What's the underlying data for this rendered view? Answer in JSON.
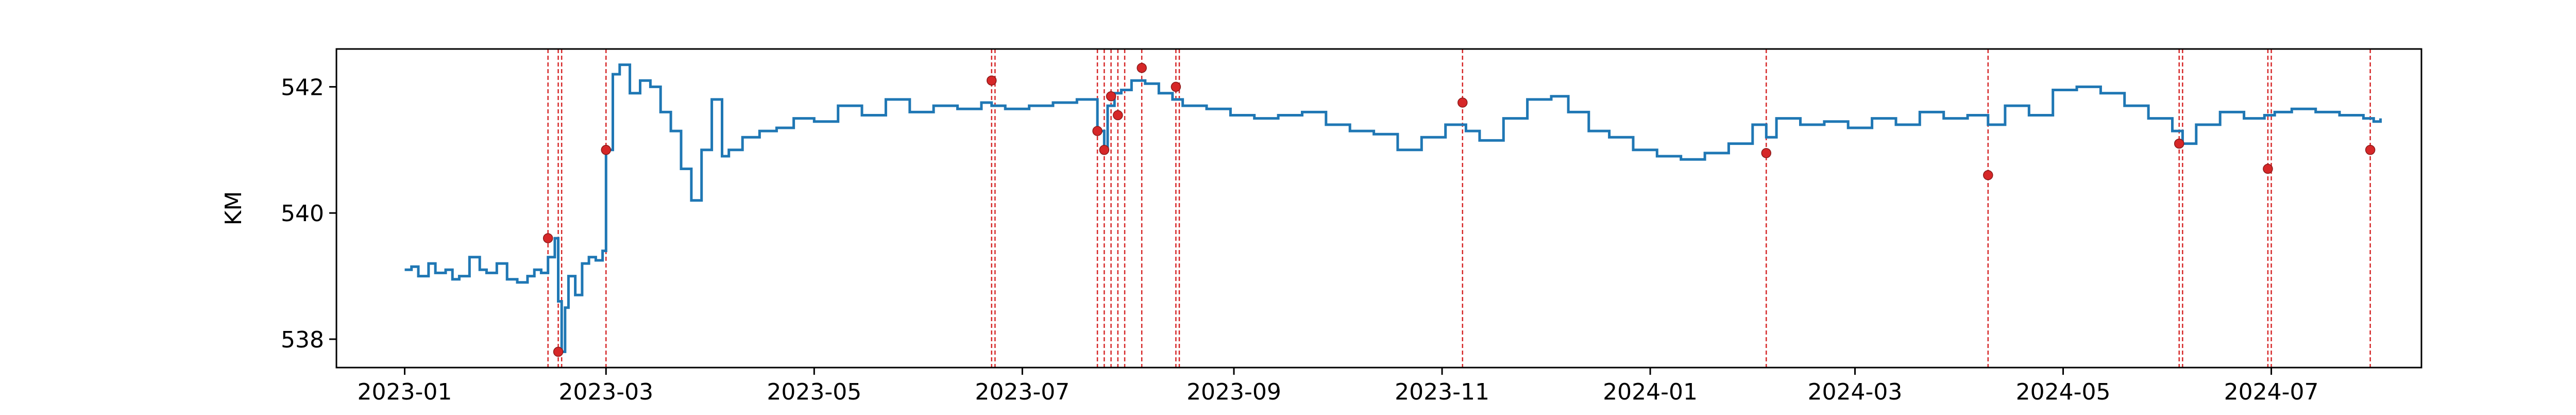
{
  "chart_data": {
    "type": "line",
    "title": "",
    "xlabel": "",
    "ylabel": "KM",
    "xlim": [
      "2022-12-12",
      "2024-08-14"
    ],
    "ylim": [
      537.55,
      542.6
    ],
    "x_ticks": [
      "2023-01",
      "2023-03",
      "2023-05",
      "2023-07",
      "2023-09",
      "2023-11",
      "2024-01",
      "2024-03",
      "2024-05",
      "2024-07"
    ],
    "y_ticks": [
      538,
      540,
      542
    ],
    "grid": false,
    "legend": "none",
    "colors": {
      "line": "#1f77b4",
      "marker": "#d62728",
      "vline": "#d62728",
      "axes": "#000000"
    },
    "series": [
      {
        "values_x": [
          "2023-01-01",
          "2023-01-03",
          "2023-01-05",
          "2023-01-08",
          "2023-01-10",
          "2023-01-13",
          "2023-01-15",
          "2023-01-17",
          "2023-01-20",
          "2023-01-23",
          "2023-01-25",
          "2023-01-28",
          "2023-01-31",
          "2023-02-03",
          "2023-02-06",
          "2023-02-08",
          "2023-02-10",
          "2023-02-12",
          "2023-02-14",
          "2023-02-15",
          "2023-02-16",
          "2023-02-17",
          "2023-02-18",
          "2023-02-20",
          "2023-02-22",
          "2023-02-24",
          "2023-02-26",
          "2023-02-28",
          "2023-03-01",
          "2023-03-03",
          "2023-03-05",
          "2023-03-08",
          "2023-03-11",
          "2023-03-14",
          "2023-03-17",
          "2023-03-20",
          "2023-03-23",
          "2023-03-26",
          "2023-03-29",
          "2023-04-01",
          "2023-04-04",
          "2023-04-06",
          "2023-04-10",
          "2023-04-15",
          "2023-04-20",
          "2023-04-25",
          "2023-05-01",
          "2023-05-08",
          "2023-05-15",
          "2023-05-22",
          "2023-05-29",
          "2023-06-05",
          "2023-06-12",
          "2023-06-19",
          "2023-06-22",
          "2023-06-26",
          "2023-07-03",
          "2023-07-10",
          "2023-07-17",
          "2023-07-23",
          "2023-07-25",
          "2023-07-26",
          "2023-07-28",
          "2023-07-30",
          "2023-08-02",
          "2023-08-06",
          "2023-08-10",
          "2023-08-14",
          "2023-08-17",
          "2023-08-24",
          "2023-08-31",
          "2023-09-07",
          "2023-09-14",
          "2023-09-21",
          "2023-09-28",
          "2023-10-05",
          "2023-10-12",
          "2023-10-19",
          "2023-10-26",
          "2023-11-02",
          "2023-11-08",
          "2023-11-12",
          "2023-11-19",
          "2023-11-26",
          "2023-12-03",
          "2023-12-08",
          "2023-12-14",
          "2023-12-20",
          "2023-12-27",
          "2024-01-03",
          "2024-01-10",
          "2024-01-17",
          "2024-01-24",
          "2024-01-31",
          "2024-02-04",
          "2024-02-07",
          "2024-02-14",
          "2024-02-21",
          "2024-02-28",
          "2024-03-06",
          "2024-03-13",
          "2024-03-20",
          "2024-03-27",
          "2024-04-03",
          "2024-04-09",
          "2024-04-14",
          "2024-04-21",
          "2024-04-28",
          "2024-05-05",
          "2024-05-12",
          "2024-05-19",
          "2024-05-26",
          "2024-06-02",
          "2024-06-05",
          "2024-06-09",
          "2024-06-16",
          "2024-06-23",
          "2024-06-29",
          "2024-07-02",
          "2024-07-07",
          "2024-07-14",
          "2024-07-21",
          "2024-07-28",
          "2024-07-31",
          "2024-08-02"
        ],
        "values_y": [
          539.1,
          539.15,
          539.0,
          539.2,
          539.05,
          539.1,
          538.95,
          539.0,
          539.3,
          539.1,
          539.05,
          539.2,
          538.95,
          538.9,
          539.0,
          539.1,
          539.05,
          539.3,
          539.6,
          538.6,
          537.8,
          538.5,
          539.0,
          538.7,
          539.2,
          539.3,
          539.25,
          539.4,
          541.0,
          542.2,
          542.35,
          541.9,
          542.1,
          542.0,
          541.6,
          541.3,
          540.7,
          540.2,
          541.0,
          541.8,
          540.9,
          541.0,
          541.2,
          541.3,
          541.35,
          541.5,
          541.45,
          541.7,
          541.55,
          541.8,
          541.6,
          541.7,
          541.65,
          541.75,
          541.7,
          541.65,
          541.7,
          541.75,
          541.8,
          541.3,
          541.0,
          541.7,
          541.9,
          541.95,
          542.1,
          542.05,
          541.9,
          541.8,
          541.7,
          541.65,
          541.55,
          541.5,
          541.55,
          541.6,
          541.4,
          541.3,
          541.25,
          541.0,
          541.2,
          541.4,
          541.3,
          541.15,
          541.5,
          541.8,
          541.85,
          541.6,
          541.3,
          541.2,
          541.0,
          540.9,
          540.85,
          540.95,
          541.1,
          541.4,
          541.2,
          541.5,
          541.4,
          541.45,
          541.35,
          541.5,
          541.4,
          541.6,
          541.5,
          541.55,
          541.4,
          541.7,
          541.55,
          541.95,
          542.0,
          541.9,
          541.7,
          541.5,
          541.3,
          541.1,
          541.4,
          541.6,
          541.5,
          541.55,
          541.6,
          541.65,
          541.6,
          541.55,
          541.5,
          541.45,
          541.5
        ]
      }
    ],
    "markers": {
      "x": [
        "2023-02-12",
        "2023-02-15",
        "2023-03-01",
        "2023-06-22",
        "2023-07-23",
        "2023-07-25",
        "2023-07-27",
        "2023-07-29",
        "2023-08-05",
        "2023-08-15",
        "2023-11-07",
        "2024-02-04",
        "2024-04-09",
        "2024-06-04",
        "2024-06-30",
        "2024-07-30"
      ],
      "y": [
        539.6,
        537.8,
        541.0,
        542.1,
        541.3,
        541.0,
        541.85,
        541.55,
        542.3,
        542.0,
        541.75,
        540.95,
        540.6,
        541.1,
        540.7,
        541.0
      ]
    },
    "vlines": [
      "2023-02-12",
      "2023-02-15",
      "2023-02-16",
      "2023-03-01",
      "2023-06-22",
      "2023-06-23",
      "2023-07-23",
      "2023-07-25",
      "2023-07-27",
      "2023-07-29",
      "2023-07-31",
      "2023-08-05",
      "2023-08-15",
      "2023-08-16",
      "2023-11-07",
      "2024-02-04",
      "2024-04-09",
      "2024-06-04",
      "2024-06-05",
      "2024-06-30",
      "2024-07-01",
      "2024-07-30"
    ]
  }
}
